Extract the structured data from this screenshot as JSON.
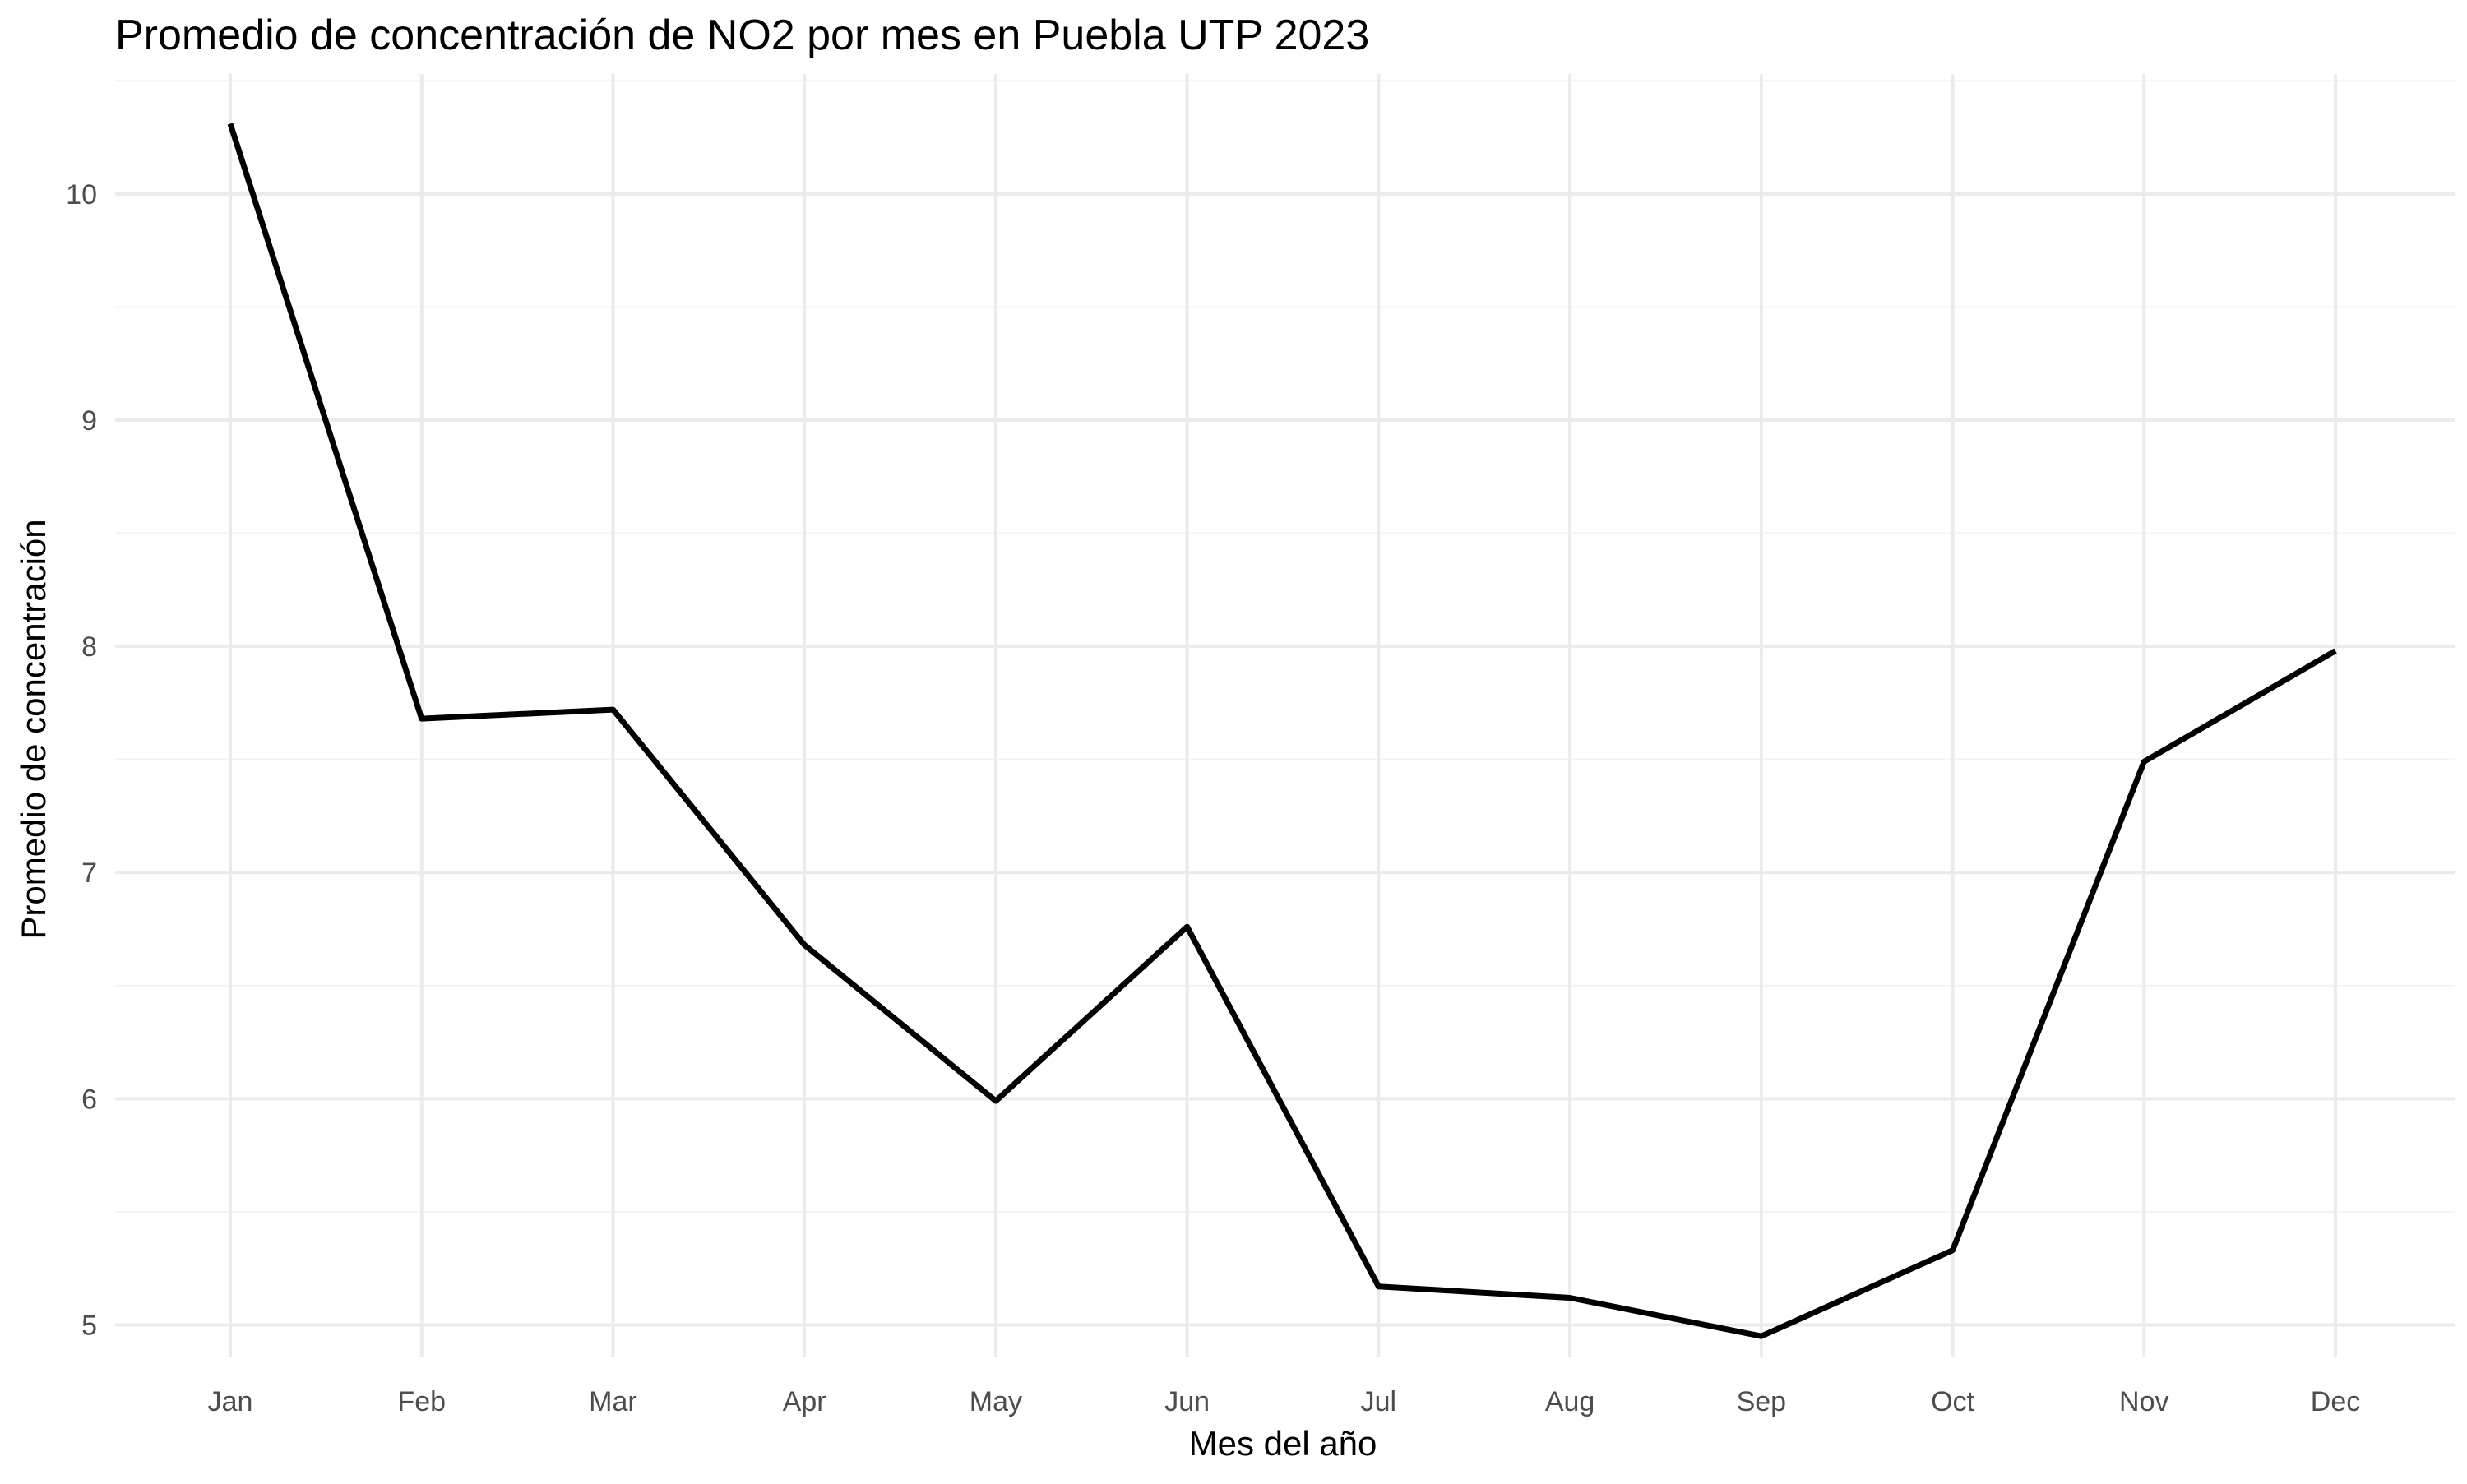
{
  "chart_data": {
    "type": "line",
    "title": "Promedio de concentración de NO2 por mes en Puebla UTP 2023",
    "xlabel": "Mes del año",
    "ylabel": "Promedio de concentración",
    "categories": [
      "Jan",
      "Feb",
      "Mar",
      "Apr",
      "May",
      "Jun",
      "Jul",
      "Aug",
      "Sep",
      "Oct",
      "Nov",
      "Dec"
    ],
    "series": [
      {
        "values": [
          10.31,
          7.68,
          7.72,
          6.68,
          5.99,
          6.76,
          5.17,
          5.12,
          4.95,
          5.33,
          7.49,
          7.98
        ]
      }
    ],
    "ylim": [
      4.86,
      10.53
    ],
    "yticks": [
      5,
      6,
      7,
      8,
      9,
      10
    ],
    "ytick_labels": [
      "5",
      "6",
      "7",
      "8",
      "9",
      "10"
    ],
    "grid": true,
    "legend": "none",
    "line_color": "#000000",
    "grid_color": "#ebebeb",
    "background": "#ffffff"
  }
}
